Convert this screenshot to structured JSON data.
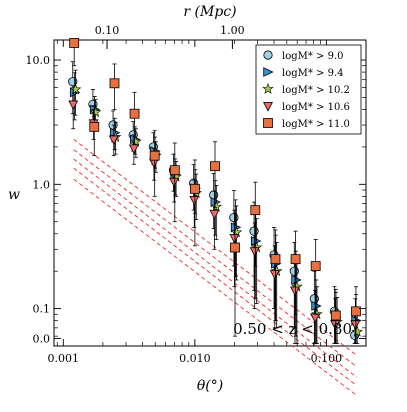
{
  "chart_data": {
    "type": "scatter",
    "xlabel": "θ(°)",
    "ylabel": "w",
    "top_axis_label": "r (Mpc)",
    "annotation": "0.50 < z < 0.80",
    "x_scale": "log",
    "y_scale": "log",
    "xlim": [
      0.00085,
      0.2
    ],
    "ylim": [
      0.05,
      14.5
    ],
    "grid": false,
    "legend_position": "top-right",
    "x_ticks": [
      {
        "value": 0.001,
        "label": "0.001"
      },
      {
        "value": 0.01,
        "label": "0.010"
      },
      {
        "value": 0.1,
        "label": "0.100"
      }
    ],
    "y_ticks": [
      {
        "value": 10.0,
        "label": "10.0"
      },
      {
        "value": 1.0,
        "label": "1.0"
      },
      {
        "value": 0.1,
        "label": "0.1"
      },
      {
        "value": 0.0575,
        "label": "0.0"
      }
    ],
    "top_ticks": [
      {
        "x": 0.00215,
        "label": "0.10"
      },
      {
        "x": 0.0193,
        "label": "1.00"
      }
    ],
    "series": [
      {
        "name": "logM* > 9.0",
        "legend_label": "logM* > 9.0",
        "marker": "circle",
        "color": "#9fd0e6",
        "x": [
          0.00118,
          0.00168,
          0.00239,
          0.0034,
          0.00484,
          0.00688,
          0.00979,
          0.0139,
          0.0198,
          0.0282,
          0.04,
          0.057,
          0.081,
          0.115,
          0.164
        ],
        "y": [
          6.7,
          4.4,
          3.0,
          2.5,
          2.0,
          1.3,
          1.02,
          0.82,
          0.54,
          0.42,
          0.27,
          0.2,
          0.12,
          0.095,
          0.061
        ],
        "yerr_low": [
          3.0,
          1.2,
          0.8,
          0.65,
          0.55,
          0.42,
          0.4,
          0.38,
          0.32,
          0.28,
          0.17,
          0.13,
          0.07,
          0.05,
          0.03
        ],
        "yerr_high": [
          3.0,
          1.4,
          0.9,
          0.7,
          0.6,
          0.45,
          0.42,
          0.4,
          0.35,
          0.3,
          0.18,
          0.14,
          0.08,
          0.055,
          0.035
        ]
      },
      {
        "name": "logM* > 9.4",
        "legend_label": "logM* > 9.4",
        "marker": "triangle-right",
        "color": "#3a8fd0",
        "x": [
          0.00122,
          0.00173,
          0.00246,
          0.0035,
          0.00498,
          0.00708,
          0.01007,
          0.0143,
          0.0204,
          0.029,
          0.0412,
          0.0587,
          0.0834,
          0.118,
          0.168
        ],
        "y": [
          5.5,
          4.0,
          2.6,
          2.3,
          1.85,
          1.2,
          0.93,
          0.72,
          0.45,
          0.35,
          0.23,
          0.17,
          0.105,
          0.085,
          0.08
        ],
        "yerr_low": [
          2.2,
          1.0,
          0.7,
          0.55,
          0.5,
          0.38,
          0.35,
          0.33,
          0.27,
          0.23,
          0.15,
          0.11,
          0.06,
          0.045,
          0.045
        ],
        "yerr_high": [
          2.4,
          1.1,
          0.8,
          0.6,
          0.55,
          0.4,
          0.38,
          0.35,
          0.3,
          0.25,
          0.16,
          0.12,
          0.065,
          0.05,
          0.05
        ]
      },
      {
        "name": "logM* > 10.2",
        "legend_label": "logM* > 10.2",
        "marker": "star",
        "color": "#a3c94a",
        "x": [
          0.00124,
          0.00176,
          0.0025,
          0.00356,
          0.00506,
          0.0072,
          0.01024,
          0.01456,
          0.0207,
          0.0295,
          0.0419,
          0.0597,
          0.0848,
          0.1206,
          0.1715
        ],
        "y": [
          5.8,
          3.8,
          2.4,
          2.2,
          1.7,
          1.15,
          0.85,
          0.66,
          0.41,
          0.31,
          0.2,
          0.15,
          0.09,
          0.078,
          0.065
        ],
        "yerr_low": [
          2.2,
          0.9,
          0.65,
          0.55,
          0.45,
          0.35,
          0.33,
          0.3,
          0.24,
          0.2,
          0.13,
          0.1,
          0.055,
          0.04,
          0.03
        ],
        "yerr_high": [
          2.5,
          1.0,
          0.75,
          0.6,
          0.5,
          0.38,
          0.36,
          0.32,
          0.26,
          0.22,
          0.14,
          0.11,
          0.06,
          0.045,
          0.035
        ]
      },
      {
        "name": "logM* > 10.6",
        "legend_label": "logM* > 10.6",
        "marker": "triangle-down",
        "color": "#ee6a6a",
        "x": [
          0.00119,
          0.0017,
          0.00242,
          0.00344,
          0.00489,
          0.00696,
          0.0099,
          0.01408,
          0.02,
          0.0285,
          0.0405,
          0.0577,
          0.082,
          0.1166,
          0.166
        ],
        "y": [
          4.4,
          3.1,
          2.3,
          1.95,
          1.5,
          1.05,
          0.75,
          0.58,
          0.37,
          0.29,
          0.19,
          0.14,
          0.085,
          0.075,
          0.075
        ],
        "yerr_low": [
          1.6,
          0.8,
          0.6,
          0.5,
          0.42,
          0.33,
          0.3,
          0.28,
          0.22,
          0.19,
          0.12,
          0.09,
          0.05,
          0.04,
          0.04
        ],
        "yerr_high": [
          1.8,
          0.9,
          0.7,
          0.55,
          0.45,
          0.35,
          0.33,
          0.3,
          0.25,
          0.2,
          0.13,
          0.1,
          0.055,
          0.045,
          0.045
        ]
      },
      {
        "name": "logM* > 11.0",
        "legend_label": "logM* > 11.0",
        "marker": "square",
        "color": "#e8703f",
        "x": [
          0.00121,
          0.00172,
          0.00245,
          0.00348,
          0.00495,
          0.00704,
          0.01001,
          0.01423,
          0.0202,
          0.0288,
          0.041,
          0.0583,
          0.0829,
          0.1179,
          0.1677
        ],
        "y": [
          14.0,
          2.9,
          6.5,
          3.7,
          1.7,
          1.3,
          0.92,
          1.4,
          0.31,
          0.62,
          0.25,
          0.25,
          0.22,
          0.088,
          0.095
        ],
        "yerr_low": [
          5.0,
          1.2,
          2.5,
          1.6,
          0.9,
          0.8,
          0.6,
          0.75,
          0.25,
          0.4,
          0.17,
          0.16,
          0.13,
          0.05,
          0.05
        ],
        "yerr_high": [
          5.5,
          1.4,
          2.8,
          1.8,
          1.0,
          0.85,
          0.65,
          0.8,
          0.27,
          0.42,
          0.18,
          0.17,
          0.14,
          0.055,
          0.055
        ]
      }
    ],
    "model_lines": [
      {
        "x": [
          0.0012,
          0.17
        ],
        "y": [
          2.3,
          0.042
        ]
      },
      {
        "x": [
          0.0012,
          0.17
        ],
        "y": [
          1.9,
          0.034
        ]
      },
      {
        "x": [
          0.0012,
          0.17
        ],
        "y": [
          1.6,
          0.028
        ]
      },
      {
        "x": [
          0.0012,
          0.17
        ],
        "y": [
          1.35,
          0.024
        ]
      },
      {
        "x": [
          0.0012,
          0.17
        ],
        "y": [
          1.1,
          0.02
        ]
      }
    ],
    "model_line_color": "#ee2a2a"
  }
}
